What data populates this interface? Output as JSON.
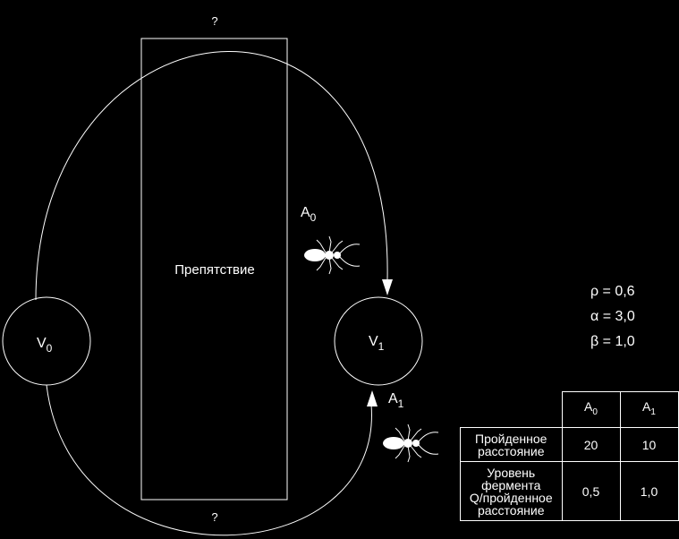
{
  "diagram": {
    "edge_top_label": "?",
    "edge_bottom_label": "?",
    "obstacle_label": "Препятствие",
    "nodes": [
      {
        "label": "V",
        "sub": "0"
      },
      {
        "label": "V",
        "sub": "1"
      }
    ],
    "ants": [
      {
        "label": "A",
        "sub": "0"
      },
      {
        "label": "A",
        "sub": "1"
      }
    ]
  },
  "params": {
    "rho": "ρ = 0,6",
    "alpha": "α = 3,0",
    "beta": "β = 1,0"
  },
  "table": {
    "headers": [
      {
        "label": "A",
        "sub": "0"
      },
      {
        "label": "A",
        "sub": "1"
      }
    ],
    "rows": [
      {
        "label": "Пройденное\nрасстояние",
        "values": [
          "20",
          "10"
        ]
      },
      {
        "label": "Уровень\nфермента\nQ/пройденное\nрасстояние",
        "values": [
          "0,5",
          "1,0"
        ]
      }
    ]
  }
}
